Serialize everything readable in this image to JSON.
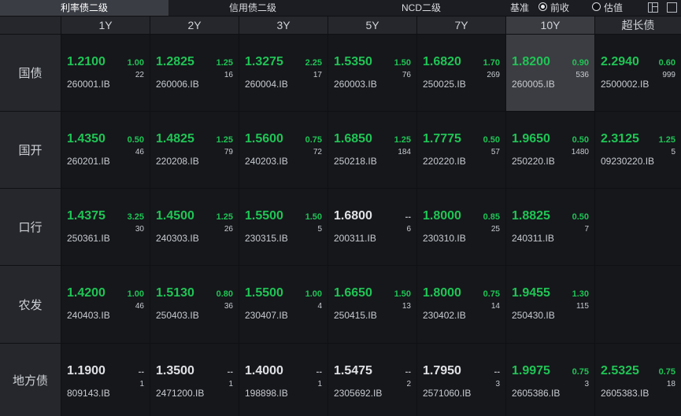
{
  "tabs": [
    {
      "label": "利率债二级",
      "active": true
    },
    {
      "label": "信用债二级",
      "active": false
    },
    {
      "label": "NCD二级",
      "active": false
    }
  ],
  "basis": {
    "label": "基准",
    "options": [
      {
        "label": "前收",
        "selected": true
      },
      {
        "label": "估值",
        "selected": false
      }
    ]
  },
  "icons": [
    "layout-icon",
    "window-icon"
  ],
  "columns": [
    "1Y",
    "2Y",
    "3Y",
    "5Y",
    "7Y",
    "10Y",
    "超长债"
  ],
  "selected_column": "10Y",
  "colors": {
    "up": "#20c455",
    "flat": "#dfe1e5",
    "selected_bg": "#3b3d42"
  },
  "rows": [
    {
      "name": "国债",
      "cells": [
        {
          "yield": "1.2100",
          "change": "1.00",
          "volume": "22",
          "code": "260001.IB",
          "trend": "up"
        },
        {
          "yield": "1.2825",
          "change": "1.25",
          "volume": "16",
          "code": "260006.IB",
          "trend": "up"
        },
        {
          "yield": "1.3275",
          "change": "2.25",
          "volume": "17",
          "code": "260004.IB",
          "trend": "up"
        },
        {
          "yield": "1.5350",
          "change": "1.50",
          "volume": "76",
          "code": "260003.IB",
          "trend": "up"
        },
        {
          "yield": "1.6820",
          "change": "1.70",
          "volume": "269",
          "code": "250025.IB",
          "trend": "up"
        },
        {
          "yield": "1.8200",
          "change": "0.90",
          "volume": "536",
          "code": "260005.IB",
          "trend": "up",
          "selected": true
        },
        {
          "yield": "2.2940",
          "change": "0.60",
          "volume": "999",
          "code": "2500002.IB",
          "trend": "up"
        }
      ]
    },
    {
      "name": "国开",
      "cells": [
        {
          "yield": "1.4350",
          "change": "0.50",
          "volume": "46",
          "code": "260201.IB",
          "trend": "up"
        },
        {
          "yield": "1.4825",
          "change": "1.25",
          "volume": "79",
          "code": "220208.IB",
          "trend": "up"
        },
        {
          "yield": "1.5600",
          "change": "0.75",
          "volume": "72",
          "code": "240203.IB",
          "trend": "up"
        },
        {
          "yield": "1.6850",
          "change": "1.25",
          "volume": "184",
          "code": "250218.IB",
          "trend": "up"
        },
        {
          "yield": "1.7775",
          "change": "0.50",
          "volume": "57",
          "code": "220220.IB",
          "trend": "up"
        },
        {
          "yield": "1.9650",
          "change": "0.50",
          "volume": "1480",
          "code": "250220.IB",
          "trend": "up"
        },
        {
          "yield": "2.3125",
          "change": "1.25",
          "volume": "5",
          "code": "09230220.IB",
          "trend": "up"
        }
      ]
    },
    {
      "name": "口行",
      "cells": [
        {
          "yield": "1.4375",
          "change": "3.25",
          "volume": "30",
          "code": "250361.IB",
          "trend": "up"
        },
        {
          "yield": "1.4500",
          "change": "1.25",
          "volume": "26",
          "code": "240303.IB",
          "trend": "up"
        },
        {
          "yield": "1.5500",
          "change": "1.50",
          "volume": "5",
          "code": "230315.IB",
          "trend": "up"
        },
        {
          "yield": "1.6800",
          "change": "--",
          "volume": "6",
          "code": "200311.IB",
          "trend": "flat"
        },
        {
          "yield": "1.8000",
          "change": "0.85",
          "volume": "25",
          "code": "230310.IB",
          "trend": "up"
        },
        {
          "yield": "1.8825",
          "change": "0.50",
          "volume": "7",
          "code": "240311.IB",
          "trend": "up"
        },
        null
      ]
    },
    {
      "name": "农发",
      "cells": [
        {
          "yield": "1.4200",
          "change": "1.00",
          "volume": "46",
          "code": "240403.IB",
          "trend": "up"
        },
        {
          "yield": "1.5130",
          "change": "0.80",
          "volume": "36",
          "code": "250403.IB",
          "trend": "up"
        },
        {
          "yield": "1.5500",
          "change": "1.00",
          "volume": "4",
          "code": "230407.IB",
          "trend": "up"
        },
        {
          "yield": "1.6650",
          "change": "1.50",
          "volume": "13",
          "code": "250415.IB",
          "trend": "up"
        },
        {
          "yield": "1.8000",
          "change": "0.75",
          "volume": "14",
          "code": "230402.IB",
          "trend": "up"
        },
        {
          "yield": "1.9455",
          "change": "1.30",
          "volume": "115",
          "code": "250430.IB",
          "trend": "up"
        },
        null
      ]
    },
    {
      "name": "地方债",
      "cells": [
        {
          "yield": "1.1900",
          "change": "--",
          "volume": "1",
          "code": "809143.IB",
          "trend": "flat"
        },
        {
          "yield": "1.3500",
          "change": "--",
          "volume": "1",
          "code": "2471200.IB",
          "trend": "flat"
        },
        {
          "yield": "1.4000",
          "change": "--",
          "volume": "1",
          "code": "198898.IB",
          "trend": "flat"
        },
        {
          "yield": "1.5475",
          "change": "--",
          "volume": "2",
          "code": "2305692.IB",
          "trend": "flat"
        },
        {
          "yield": "1.7950",
          "change": "--",
          "volume": "3",
          "code": "2571060.IB",
          "trend": "flat"
        },
        {
          "yield": "1.9975",
          "change": "0.75",
          "volume": "3",
          "code": "2605386.IB",
          "trend": "up"
        },
        {
          "yield": "2.5325",
          "change": "0.75",
          "volume": "18",
          "code": "2605383.IB",
          "trend": "up"
        }
      ]
    }
  ]
}
